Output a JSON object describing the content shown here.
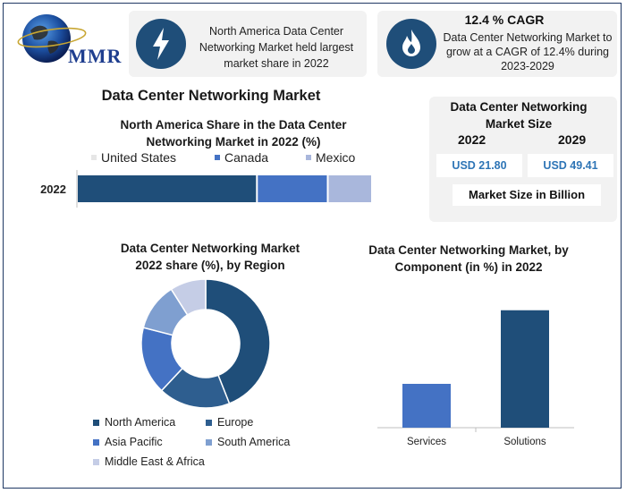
{
  "brand": {
    "logo_text": "MMR"
  },
  "card_share": {
    "text": "North America Data Center Networking Market held largest market share in 2022"
  },
  "card_cagr": {
    "title": "12.4 % CAGR",
    "text": "Data Center Networking Market to grow at a CAGR of 12.4% during 2023-2029"
  },
  "main_title": "Data Center Networking Market",
  "market_size": {
    "title": "Data Center Networking Market Size",
    "year1": "2022",
    "year2": "2029",
    "value1": "USD 21.80",
    "value2": "USD 49.41",
    "unit": "Market Size in Billion"
  },
  "colors": {
    "dark": "#1f4e79",
    "mid": "#4472c4",
    "light": "#a9b7dc",
    "sa": "#7f9fd0",
    "mea": "#c5cde6",
    "icon_bg": "#1f4e79"
  },
  "icons": {
    "card_share": "lightning-icon",
    "card_cagr": "flame-icon",
    "logo": "globe-icon"
  },
  "chart_data": [
    {
      "type": "bar",
      "orientation": "horizontal-stacked",
      "title": "North America Share in the Data Center Networking Market in 2022 (%)",
      "categories": [
        "2022"
      ],
      "series": [
        {
          "name": "United States",
          "values": [
            61
          ],
          "color": "#1f4e79"
        },
        {
          "name": "Canada",
          "values": [
            24
          ],
          "color": "#4472c4"
        },
        {
          "name": "Mexico",
          "values": [
            15
          ],
          "color": "#a9b7dc"
        }
      ],
      "legend": "top"
    },
    {
      "type": "pie",
      "variant": "donut",
      "title": "Data Center Networking Market 2022 share (%), by Region",
      "labels": [
        "North America",
        "Europe",
        "Asia Pacific",
        "South America",
        "Middle East & Africa"
      ],
      "values": [
        44,
        18,
        17,
        12,
        9
      ],
      "colors": [
        "#1f4e79",
        "#2e5e8f",
        "#4472c4",
        "#7f9fd0",
        "#c5cde6"
      ],
      "legend": "bottom"
    },
    {
      "type": "bar",
      "title": "Data Center Networking Market, by Component (in %) in 2022",
      "categories": [
        "Services",
        "Solutions"
      ],
      "values": [
        28,
        75
      ],
      "colors": [
        "#4472c4",
        "#1f4e79"
      ],
      "ylim": [
        0,
        80
      ]
    }
  ]
}
